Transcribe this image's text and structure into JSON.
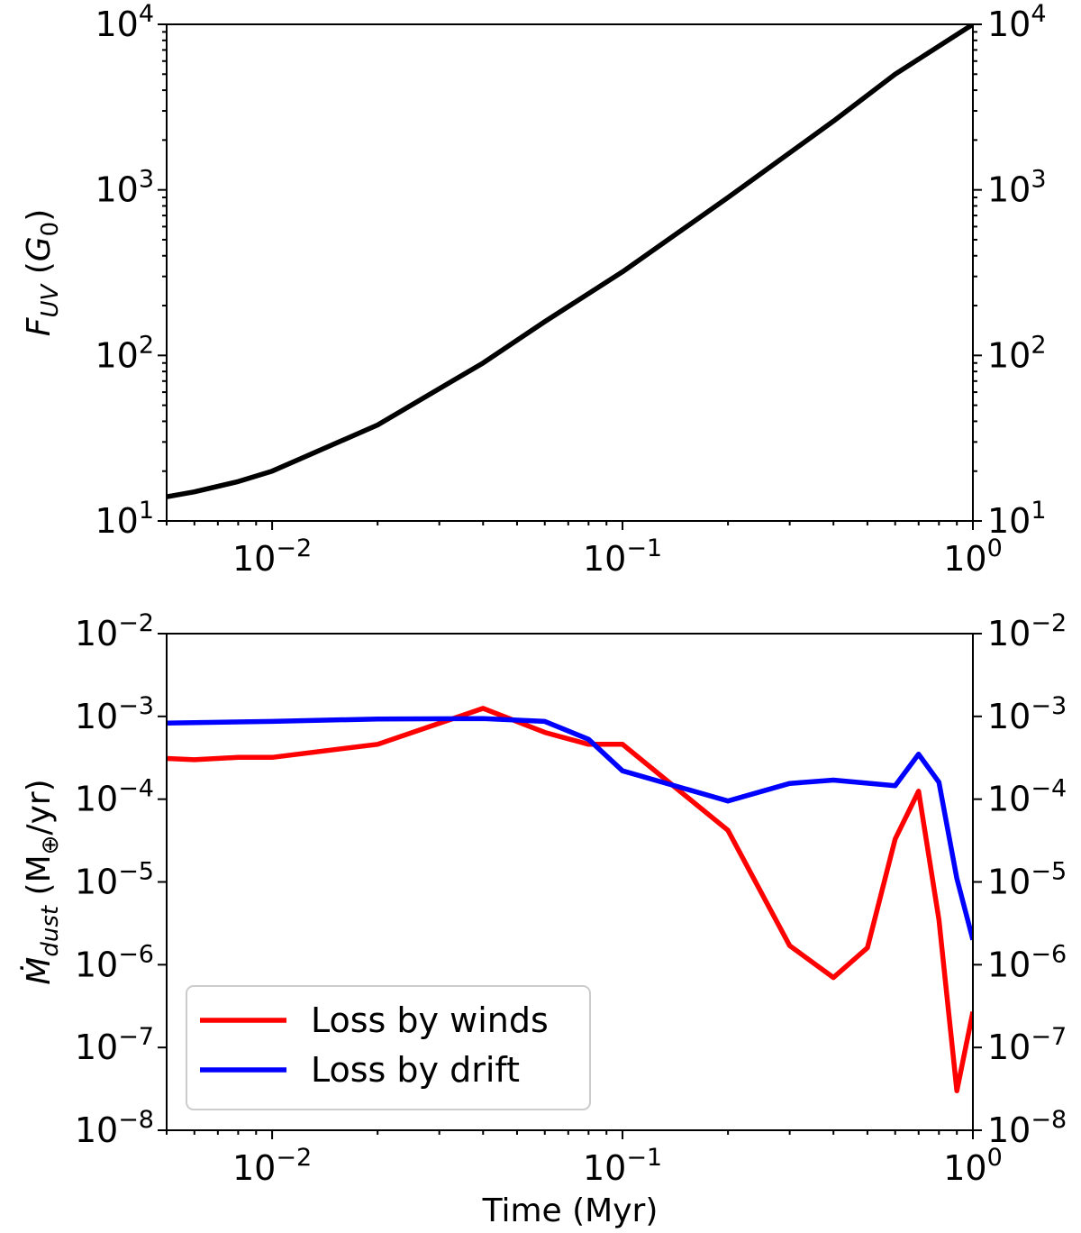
{
  "figure": {
    "xlabel": "Time (Myr)"
  },
  "chart_data": [
    {
      "type": "line",
      "title": "",
      "xscale": "log",
      "yscale": "log",
      "xlim": [
        0.005,
        1
      ],
      "ylim": [
        10,
        10000
      ],
      "xlabel": "",
      "ylabel": "F_UV (G_0)",
      "ylabel_parts": {
        "main": "F",
        "sub": "UV",
        "rest_open": " (",
        "unit": "G",
        "unit_sub": "0",
        "close": ")"
      },
      "xticks": [
        {
          "value": 0.01,
          "base": "10",
          "exp": "−2"
        },
        {
          "value": 0.1,
          "base": "10",
          "exp": "−1"
        },
        {
          "value": 1,
          "base": "10",
          "exp": "0"
        }
      ],
      "yticks": [
        {
          "value": 10,
          "base": "10",
          "exp": "1"
        },
        {
          "value": 100,
          "base": "10",
          "exp": "2"
        },
        {
          "value": 1000,
          "base": "10",
          "exp": "3"
        },
        {
          "value": 10000,
          "base": "10",
          "exp": "4"
        }
      ],
      "right_axis_ticks": true,
      "grid": false,
      "series": [
        {
          "color": "#000000",
          "x": [
            0.005,
            0.006,
            0.008,
            0.01,
            0.02,
            0.04,
            0.06,
            0.1,
            0.2,
            0.4,
            0.6,
            1.0
          ],
          "y": [
            14,
            15,
            17.3,
            20,
            38,
            90,
            160,
            320,
            900,
            2600,
            5000,
            10000
          ]
        }
      ]
    },
    {
      "type": "line",
      "title": "",
      "xscale": "log",
      "yscale": "log",
      "xlim": [
        0.005,
        1
      ],
      "ylim": [
        1e-08,
        0.01
      ],
      "xlabel": "Time (Myr)",
      "ylabel": "Ṁ_dust (M⊕/yr)",
      "ylabel_parts": {
        "main": "Ṁ",
        "sub": "dust",
        "rest": " (M",
        "earth_sub": "⊕",
        "close": "/yr)"
      },
      "xticks": [
        {
          "value": 0.01,
          "base": "10",
          "exp": "−2"
        },
        {
          "value": 0.1,
          "base": "10",
          "exp": "−1"
        },
        {
          "value": 1,
          "base": "10",
          "exp": "0"
        }
      ],
      "yticks": [
        {
          "value": 1e-08,
          "base": "10",
          "exp": "−8"
        },
        {
          "value": 1e-07,
          "base": "10",
          "exp": "−7"
        },
        {
          "value": 1e-06,
          "base": "10",
          "exp": "−6"
        },
        {
          "value": 1e-05,
          "base": "10",
          "exp": "−5"
        },
        {
          "value": 0.0001,
          "base": "10",
          "exp": "−4"
        },
        {
          "value": 0.001,
          "base": "10",
          "exp": "−3"
        },
        {
          "value": 0.01,
          "base": "10",
          "exp": "−2"
        }
      ],
      "right_axis_ticks": true,
      "grid": false,
      "legend": {
        "placement": "lower-left"
      },
      "series": [
        {
          "name": "Loss by winds",
          "color": "#ff0000",
          "x": [
            0.005,
            0.006,
            0.008,
            0.01,
            0.02,
            0.04,
            0.06,
            0.08,
            0.1,
            0.2,
            0.3,
            0.4,
            0.5,
            0.6,
            0.7,
            0.8,
            0.9,
            1.0
          ],
          "y": [
            0.00031,
            0.0003,
            0.00032,
            0.00032,
            0.00046,
            0.00125,
            0.00064,
            0.00046,
            0.00046,
            4.2e-05,
            1.7e-06,
            7e-07,
            1.6e-06,
            3.3e-05,
            0.000125,
            3.5e-06,
            3e-08,
            2.7e-07
          ]
        },
        {
          "name": "Loss by drift",
          "color": "#0000ff",
          "x": [
            0.005,
            0.01,
            0.02,
            0.04,
            0.06,
            0.08,
            0.1,
            0.2,
            0.3,
            0.4,
            0.6,
            0.7,
            0.8,
            0.9,
            1.0
          ],
          "y": [
            0.00083,
            0.00087,
            0.00093,
            0.00094,
            0.00087,
            0.00053,
            0.00022,
            9.5e-05,
            0.000155,
            0.00017,
            0.000145,
            0.00035,
            0.00016,
            1.1e-05,
            2e-06
          ]
        }
      ]
    }
  ]
}
